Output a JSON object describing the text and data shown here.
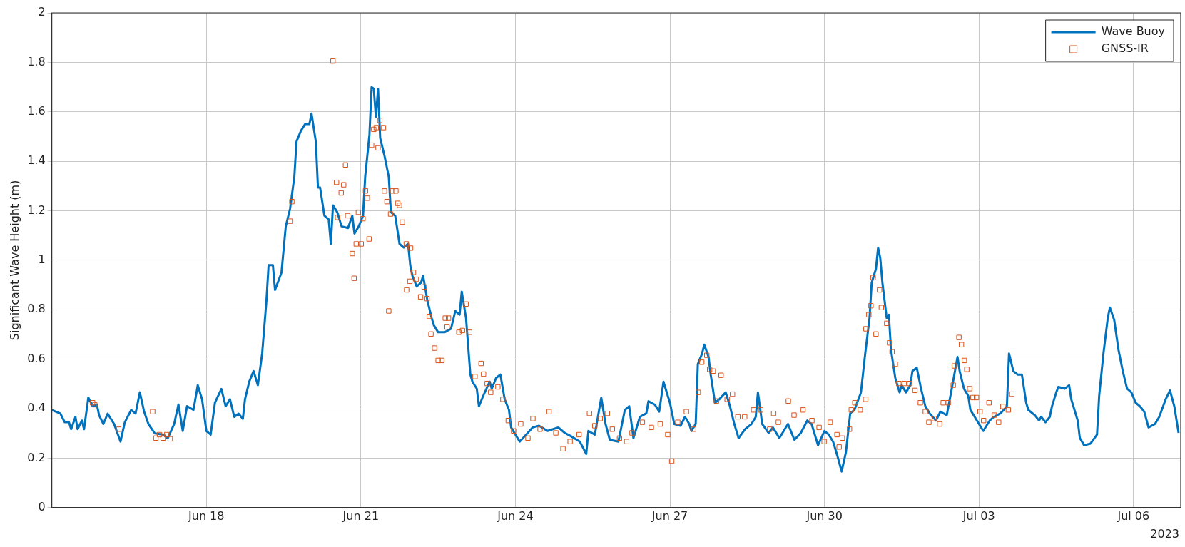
{
  "chart_data": {
    "type": "line",
    "ylabel": "Significant Wave Height (m)",
    "xlim": [
      "2023-06-15",
      "2023-07-06T22:00"
    ],
    "xticks": [
      {
        "value": "2023-06-18",
        "label": "Jun 18"
      },
      {
        "value": "2023-06-21",
        "label": "Jun 21"
      },
      {
        "value": "2023-06-24",
        "label": "Jun 24"
      },
      {
        "value": "2023-06-27",
        "label": "Jun 27"
      },
      {
        "value": "2023-06-30",
        "label": "Jun 30"
      },
      {
        "value": "2023-07-03",
        "label": "Jul 03"
      },
      {
        "value": "2023-07-06",
        "label": "Jul 06"
      }
    ],
    "ylim": [
      0,
      2
    ],
    "yticks": [
      0,
      0.2,
      0.4,
      0.6,
      0.8,
      1,
      1.2,
      1.4,
      1.6,
      1.8,
      2
    ],
    "grid": true,
    "legend": "top right",
    "annotations": [
      "2023"
    ],
    "series": [
      {
        "name": "Wave Buoy",
        "type": "line",
        "color": "#0072bd",
        "marker": "none",
        "line_style": "solid",
        "x": [
          "2023-06-15T00:00",
          "2023-06-15T04:00",
          "2023-06-15T06:00",
          "2023-06-15T08:00",
          "2023-06-15T09:00",
          "2023-06-15T11:00",
          "2023-06-15T12:00",
          "2023-06-15T14:00",
          "2023-06-15T15:00",
          "2023-06-15T17:00",
          "2023-06-15T19:00",
          "2023-06-15T21:00",
          "2023-06-15T22:00",
          "2023-06-16T00:00",
          "2023-06-16T02:00",
          "2023-06-16T05:00",
          "2023-06-16T08:00",
          "2023-06-16T10:00",
          "2023-06-16T13:00",
          "2023-06-16T15:00",
          "2023-06-16T17:00",
          "2023-06-16T19:00",
          "2023-06-16T21:00",
          "2023-06-17T00:00",
          "2023-06-17T04:00",
          "2023-06-17T06:00",
          "2023-06-17T09:00",
          "2023-06-17T11:00",
          "2023-06-17T13:00",
          "2023-06-17T15:00",
          "2023-06-17T18:00",
          "2023-06-17T20:00",
          "2023-06-17T22:00",
          "2023-06-18T00:00",
          "2023-06-18T02:00",
          "2023-06-18T04:00",
          "2023-06-18T07:00",
          "2023-06-18T09:00",
          "2023-06-18T11:00",
          "2023-06-18T13:00",
          "2023-06-18T15:00",
          "2023-06-18T17:00",
          "2023-06-18T18:00",
          "2023-06-18T20:00",
          "2023-06-18T22:00",
          "2023-06-19T00:00",
          "2023-06-19T02:00",
          "2023-06-19T04:00",
          "2023-06-19T05:00",
          "2023-06-19T07:00",
          "2023-06-19T08:00",
          "2023-06-19T11:00",
          "2023-06-19T13:00",
          "2023-06-19T15:00",
          "2023-06-19T17:00",
          "2023-06-19T18:00",
          "2023-06-19T20:00",
          "2023-06-19T22:00",
          "2023-06-20T00:00",
          "2023-06-20T01:00",
          "2023-06-20T03:00",
          "2023-06-20T04:00",
          "2023-06-20T05:00",
          "2023-06-20T07:00",
          "2023-06-20T09:00",
          "2023-06-20T10:00",
          "2023-06-20T11:00",
          "2023-06-20T13:00",
          "2023-06-20T15:00",
          "2023-06-20T18:00",
          "2023-06-20T20:00",
          "2023-06-20T21:00",
          "2023-06-20T23:00",
          "2023-06-21T01:00",
          "2023-06-21T02:00",
          "2023-06-21T04:00",
          "2023-06-21T05:00",
          "2023-06-21T06:00",
          "2023-06-21T07:00",
          "2023-06-21T08:00",
          "2023-06-21T09:00",
          "2023-06-21T11:00",
          "2023-06-21T13:00",
          "2023-06-21T14:00",
          "2023-06-21T16:00",
          "2023-06-21T18:00",
          "2023-06-21T20:00",
          "2023-06-21T22:00",
          "2023-06-21T23:00",
          "2023-06-22T00:00",
          "2023-06-22T02:00",
          "2023-06-22T04:00",
          "2023-06-22T05:00",
          "2023-06-22T07:00",
          "2023-06-22T09:00",
          "2023-06-22T10:00",
          "2023-06-22T12:00",
          "2023-06-22T15:00",
          "2023-06-22T18:00",
          "2023-06-22T20:00",
          "2023-06-22T22:00",
          "2023-06-22T23:00",
          "2023-06-23T01:00",
          "2023-06-23T03:00",
          "2023-06-23T04:00",
          "2023-06-23T06:00",
          "2023-06-23T07:00",
          "2023-06-23T09:00",
          "2023-06-23T12:00",
          "2023-06-23T13:00",
          "2023-06-23T15:00",
          "2023-06-23T17:00",
          "2023-06-23T19:00",
          "2023-06-23T21:00",
          "2023-06-23T22:00",
          "2023-06-24T02:00",
          "2023-06-24T05:00",
          "2023-06-24T08:00",
          "2023-06-24T11:00",
          "2023-06-24T15:00",
          "2023-06-24T20:00",
          "2023-06-24T23:00",
          "2023-06-25T02:00",
          "2023-06-25T06:00",
          "2023-06-25T09:00",
          "2023-06-25T10:00",
          "2023-06-25T13:00",
          "2023-06-25T16:00",
          "2023-06-25T18:00",
          "2023-06-25T20:00",
          "2023-06-26T00:00",
          "2023-06-26T03:00",
          "2023-06-26T05:00",
          "2023-06-26T07:00",
          "2023-06-26T10:00",
          "2023-06-26T13:00",
          "2023-06-26T14:00",
          "2023-06-26T17:00",
          "2023-06-26T19:00",
          "2023-06-26T21:00",
          "2023-06-26T23:00",
          "2023-06-27T00:00",
          "2023-06-27T02:00",
          "2023-06-27T05:00",
          "2023-06-27T07:00",
          "2023-06-27T09:00",
          "2023-06-27T10:00",
          "2023-06-27T12:00",
          "2023-06-27T13:00",
          "2023-06-27T15:00",
          "2023-06-27T16:00",
          "2023-06-27T18:00",
          "2023-06-27T19:00",
          "2023-06-27T21:00",
          "2023-06-27T23:00",
          "2023-06-28T02:00",
          "2023-06-28T04:00",
          "2023-06-28T06:00",
          "2023-06-28T08:00",
          "2023-06-28T11:00",
          "2023-06-28T14:00",
          "2023-06-28T16:00",
          "2023-06-28T17:00",
          "2023-06-28T19:00",
          "2023-06-28T22:00",
          "2023-06-29T00:00",
          "2023-06-29T03:00",
          "2023-06-29T07:00",
          "2023-06-29T10:00",
          "2023-06-29T13:00",
          "2023-06-29T16:00",
          "2023-06-29T18:00",
          "2023-06-29T21:00",
          "2023-06-30T00:00",
          "2023-06-30T02:00",
          "2023-06-30T04:00",
          "2023-06-30T06:00",
          "2023-06-30T08:00",
          "2023-06-30T10:00",
          "2023-06-30T12:00",
          "2023-06-30T14:00",
          "2023-06-30T17:00",
          "2023-06-30T19:00",
          "2023-06-30T21:00",
          "2023-06-30T22:00",
          "2023-07-01T00:00",
          "2023-07-01T01:00",
          "2023-07-01T02:00",
          "2023-07-01T03:00",
          "2023-07-01T05:00",
          "2023-07-01T06:00",
          "2023-07-01T07:00",
          "2023-07-01T09:00",
          "2023-07-01T11:00",
          "2023-07-01T12:00",
          "2023-07-01T14:00",
          "2023-07-01T16:00",
          "2023-07-01T17:00",
          "2023-07-01T19:00",
          "2023-07-01T21:00",
          "2023-07-01T23:00",
          "2023-07-02T01:00",
          "2023-07-02T04:00",
          "2023-07-02T06:00",
          "2023-07-02T09:00",
          "2023-07-02T11:00",
          "2023-07-02T14:00",
          "2023-07-02T15:00",
          "2023-07-02T17:00",
          "2023-07-02T19:00",
          "2023-07-02T20:00",
          "2023-07-02T22:00",
          "2023-07-03T00:00",
          "2023-07-03T02:00",
          "2023-07-03T05:00",
          "2023-07-03T07:00",
          "2023-07-03T10:00",
          "2023-07-03T13:00",
          "2023-07-03T14:00",
          "2023-07-03T16:00",
          "2023-07-03T18:00",
          "2023-07-03T20:00",
          "2023-07-03T22:00",
          "2023-07-03T23:00",
          "2023-07-04T02:00",
          "2023-07-04T04:00",
          "2023-07-04T05:00",
          "2023-07-04T07:00",
          "2023-07-04T09:00",
          "2023-07-04T10:00",
          "2023-07-04T12:00",
          "2023-07-04T13:00",
          "2023-07-04T16:00",
          "2023-07-04T18:00",
          "2023-07-04T19:00",
          "2023-07-04T22:00",
          "2023-07-04T23:00",
          "2023-07-05T01:00",
          "2023-07-05T04:00",
          "2023-07-05T07:00",
          "2023-07-05T08:00",
          "2023-07-05T10:00",
          "2023-07-05T12:00",
          "2023-07-05T13:00",
          "2023-07-05T15:00",
          "2023-07-05T17:00",
          "2023-07-05T19:00",
          "2023-07-05T21:00",
          "2023-07-05T23:00",
          "2023-07-06T01:00",
          "2023-07-06T03:00",
          "2023-07-06T05:00",
          "2023-07-06T07:00",
          "2023-07-06T10:00",
          "2023-07-06T12:00",
          "2023-07-06T15:00",
          "2023-07-06T17:00",
          "2023-07-06T19:00",
          "2023-07-06T21:00"
        ],
        "values": [
          0.395,
          0.38,
          0.345,
          0.345,
          0.317,
          0.367,
          0.317,
          0.352,
          0.317,
          0.445,
          0.41,
          0.416,
          0.374,
          0.338,
          0.38,
          0.338,
          0.267,
          0.345,
          0.395,
          0.38,
          0.466,
          0.388,
          0.338,
          0.3,
          0.295,
          0.28,
          0.338,
          0.417,
          0.31,
          0.41,
          0.395,
          0.495,
          0.438,
          0.31,
          0.295,
          0.424,
          0.48,
          0.41,
          0.438,
          0.367,
          0.38,
          0.359,
          0.438,
          0.51,
          0.552,
          0.495,
          0.623,
          0.837,
          0.98,
          0.98,
          0.88,
          0.95,
          1.137,
          1.208,
          1.337,
          1.48,
          1.522,
          1.55,
          1.55,
          1.593,
          1.48,
          1.294,
          1.294,
          1.18,
          1.165,
          1.066,
          1.222,
          1.194,
          1.137,
          1.13,
          1.18,
          1.108,
          1.137,
          1.18,
          1.337,
          1.508,
          1.7,
          1.693,
          1.58,
          1.693,
          1.494,
          1.422,
          1.337,
          1.194,
          1.18,
          1.066,
          1.051,
          1.066,
          0.98,
          0.937,
          0.894,
          0.909,
          0.937,
          0.837,
          0.766,
          0.737,
          0.709,
          0.709,
          0.723,
          0.795,
          0.78,
          0.873,
          0.766,
          0.538,
          0.509,
          0.481,
          0.41,
          0.452,
          0.509,
          0.481,
          0.524,
          0.538,
          0.438,
          0.395,
          0.324,
          0.267,
          0.295,
          0.324,
          0.331,
          0.31,
          0.324,
          0.302,
          0.288,
          0.267,
          0.217,
          0.31,
          0.295,
          0.445,
          0.338,
          0.274,
          0.267,
          0.395,
          0.41,
          0.281,
          0.367,
          0.381,
          0.43,
          0.416,
          0.388,
          0.509,
          0.452,
          0.424,
          0.338,
          0.331,
          0.367,
          0.338,
          0.31,
          0.338,
          0.58,
          0.623,
          0.659,
          0.609,
          0.538,
          0.424,
          0.438,
          0.466,
          0.409,
          0.338,
          0.281,
          0.317,
          0.338,
          0.367,
          0.466,
          0.338,
          0.302,
          0.324,
          0.281,
          0.338,
          0.274,
          0.302,
          0.352,
          0.338,
          0.252,
          0.31,
          0.295,
          0.267,
          0.21,
          0.146,
          0.224,
          0.381,
          0.395,
          0.466,
          0.623,
          0.766,
          0.909,
          0.966,
          1.051,
          1.008,
          0.909,
          0.766,
          0.78,
          0.638,
          0.524,
          0.466,
          0.495,
          0.466,
          0.495,
          0.552,
          0.566,
          0.481,
          0.41,
          0.381,
          0.352,
          0.388,
          0.374,
          0.466,
          0.609,
          0.552,
          0.481,
          0.452,
          0.395,
          0.367,
          0.338,
          0.31,
          0.352,
          0.367,
          0.381,
          0.409,
          0.623,
          0.552,
          0.538,
          0.538,
          0.424,
          0.395,
          0.374,
          0.352,
          0.367,
          0.345,
          0.367,
          0.409,
          0.466,
          0.488,
          0.481,
          0.495,
          0.438,
          0.352,
          0.281,
          0.252,
          0.259,
          0.295,
          0.452,
          0.623,
          0.766,
          0.809,
          0.759,
          0.638,
          0.552,
          0.481,
          0.466,
          0.424,
          0.41,
          0.388,
          0.324,
          0.338,
          0.367,
          0.438,
          0.474,
          0.41,
          0.302
        ]
      },
      {
        "name": "GNSS-IR",
        "type": "scatter",
        "color": "#d95319",
        "marker": "square",
        "x": [
          "2023-06-15T19:00",
          "2023-06-15T20:00",
          "2023-06-16T07:10",
          "2023-06-16T23:00",
          "2023-06-17T00:30",
          "2023-06-17T02:10",
          "2023-06-17T03:50",
          "2023-06-17T05:30",
          "2023-06-17T07:10",
          "2023-06-19T15:00",
          "2023-06-19T15:50",
          "2023-06-20T11:00",
          "2023-06-20T12:40",
          "2023-06-20T13:10",
          "2023-06-20T14:50",
          "2023-06-20T16:00",
          "2023-06-20T16:50",
          "2023-06-20T17:50",
          "2023-06-20T20:00",
          "2023-06-20T20:50",
          "2023-06-20T21:50",
          "2023-06-20T22:50",
          "2023-06-21T00:10",
          "2023-06-21T01:00",
          "2023-06-21T02:10",
          "2023-06-21T03:00",
          "2023-06-21T03:50",
          "2023-06-21T05:00",
          "2023-06-21T06:00",
          "2023-06-21T07:10",
          "2023-06-21T08:00",
          "2023-06-21T08:50",
          "2023-06-21T10:30",
          "2023-06-21T11:00",
          "2023-06-21T12:10",
          "2023-06-21T13:00",
          "2023-06-21T13:50",
          "2023-06-21T14:40",
          "2023-06-21T16:20",
          "2023-06-21T17:10",
          "2023-06-21T18:00",
          "2023-06-21T19:20",
          "2023-06-21T21:10",
          "2023-06-21T21:20",
          "2023-06-21T22:50",
          "2023-06-21T23:10",
          "2023-06-22T00:30",
          "2023-06-22T01:50",
          "2023-06-22T03:50",
          "2023-06-22T05:30",
          "2023-06-22T06:50",
          "2023-06-22T07:50",
          "2023-06-22T08:40",
          "2023-06-22T10:20",
          "2023-06-22T12:00",
          "2023-06-22T13:40",
          "2023-06-22T15:20",
          "2023-06-22T16:10",
          "2023-06-22T16:50",
          "2023-06-22T21:40",
          "2023-06-22T23:20",
          "2023-06-23T01:00",
          "2023-06-23T02:40",
          "2023-06-23T05:10",
          "2023-06-23T08:00",
          "2023-06-23T09:10",
          "2023-06-23T10:50",
          "2023-06-23T12:30",
          "2023-06-23T15:50",
          "2023-06-23T18:10",
          "2023-06-23T20:40",
          "2023-06-23T23:10",
          "2023-06-24T02:30",
          "2023-06-24T05:50",
          "2023-06-24T08:10",
          "2023-06-24T11:30",
          "2023-06-24T15:40",
          "2023-06-24T18:50",
          "2023-06-24T22:10",
          "2023-06-25T01:30",
          "2023-06-25T05:40",
          "2023-06-25T10:30",
          "2023-06-25T13:00",
          "2023-06-25T15:30",
          "2023-06-25T18:50",
          "2023-06-25T21:10",
          "2023-06-26T00:30",
          "2023-06-26T03:50",
          "2023-06-26T06:20",
          "2023-06-26T11:10",
          "2023-06-26T15:20",
          "2023-06-26T19:30",
          "2023-06-26T23:00",
          "2023-06-27T00:50",
          "2023-06-27T03:40",
          "2023-06-27T07:40",
          "2023-06-27T11:00",
          "2023-06-27T13:10",
          "2023-06-27T14:50",
          "2023-06-27T17:10",
          "2023-06-27T18:30",
          "2023-06-27T20:10",
          "2023-06-27T21:40",
          "2023-06-27T23:50",
          "2023-06-28T02:40",
          "2023-06-28T05:10",
          "2023-06-28T07:40",
          "2023-06-28T10:50",
          "2023-06-28T15:00",
          "2023-06-28T18:20",
          "2023-06-28T22:30",
          "2023-06-29T00:20",
          "2023-06-29T02:30",
          "2023-06-29T07:10",
          "2023-06-29T09:50",
          "2023-06-29T14:00",
          "2023-06-29T18:10",
          "2023-06-29T21:30",
          "2023-06-29T23:50",
          "2023-06-30T02:40",
          "2023-06-30T05:50",
          "2023-06-30T06:50",
          "2023-06-30T08:20",
          "2023-06-30T11:40",
          "2023-06-30T12:30",
          "2023-06-30T14:10",
          "2023-06-30T16:40",
          "2023-06-30T19:10",
          "2023-06-30T19:20",
          "2023-06-30T20:40",
          "2023-06-30T21:40",
          "2023-06-30T22:40",
          "2023-07-01T00:00",
          "2023-07-01T01:40",
          "2023-07-01T02:30",
          "2023-07-01T05:00",
          "2023-07-01T06:20",
          "2023-07-01T07:30",
          "2023-07-01T09:00",
          "2023-07-01T10:40",
          "2023-07-01T13:10",
          "2023-07-01T15:40",
          "2023-07-01T18:10",
          "2023-07-01T20:40",
          "2023-07-01T23:00",
          "2023-07-02T00:40",
          "2023-07-02T03:10",
          "2023-07-02T05:40",
          "2023-07-02T07:20",
          "2023-07-02T09:40",
          "2023-07-02T12:00",
          "2023-07-02T12:30",
          "2023-07-02T14:40",
          "2023-07-02T15:50",
          "2023-07-02T17:10",
          "2023-07-02T18:20",
          "2023-07-02T19:40",
          "2023-07-02T21:10",
          "2023-07-02T22:50",
          "2023-07-03T00:30",
          "2023-07-03T02:10",
          "2023-07-03T04:40",
          "2023-07-03T07:10",
          "2023-07-03T09:10",
          "2023-07-03T11:10",
          "2023-07-03T13:40",
          "2023-07-03T15:20"
        ],
        "values": [
          0.424,
          0.416,
          0.317,
          0.388,
          0.281,
          0.295,
          0.281,
          0.295,
          0.278,
          1.158,
          1.237,
          1.805,
          1.315,
          1.173,
          1.272,
          1.305,
          1.385,
          1.18,
          1.027,
          0.927,
          1.066,
          1.194,
          1.066,
          1.168,
          1.28,
          1.251,
          1.086,
          1.465,
          1.529,
          1.536,
          1.454,
          1.565,
          1.536,
          1.28,
          1.237,
          0.795,
          1.187,
          1.28,
          1.28,
          1.23,
          1.222,
          1.154,
          1.066,
          0.88,
          0.915,
          1.049,
          0.951,
          0.923,
          0.852,
          0.892,
          0.845,
          0.773,
          0.702,
          0.645,
          0.595,
          0.595,
          0.766,
          0.73,
          0.766,
          0.709,
          0.716,
          0.823,
          0.709,
          0.53,
          0.583,
          0.54,
          0.502,
          0.466,
          0.488,
          0.438,
          0.352,
          0.31,
          0.338,
          0.281,
          0.36,
          0.317,
          0.388,
          0.302,
          0.238,
          0.267,
          0.295,
          0.381,
          0.331,
          0.36,
          0.381,
          0.317,
          0.281,
          0.267,
          0.302,
          0.345,
          0.324,
          0.338,
          0.295,
          0.188,
          0.345,
          0.388,
          0.317,
          0.466,
          0.588,
          0.616,
          0.559,
          0.552,
          0.431,
          0.535,
          0.438,
          0.459,
          0.367,
          0.367,
          0.395,
          0.395,
          0.317,
          0.381,
          0.345,
          0.431,
          0.374,
          0.395,
          0.352,
          0.324,
          0.267,
          0.345,
          0.295,
          0.245,
          0.281,
          0.317,
          0.395,
          0.424,
          0.395,
          0.438,
          0.723,
          0.78,
          0.816,
          0.93,
          0.702,
          0.88,
          0.809,
          0.745,
          0.666,
          0.63,
          0.58,
          0.502,
          0.502,
          0.502,
          0.474,
          0.424,
          0.388,
          0.345,
          0.36,
          0.338,
          0.424,
          0.424,
          0.495,
          0.573,
          0.688,
          0.659,
          0.595,
          0.559,
          0.481,
          0.445,
          0.445,
          0.388,
          0.352,
          0.424,
          0.374,
          0.345,
          0.409,
          0.395,
          0.459
        ]
      }
    ]
  }
}
